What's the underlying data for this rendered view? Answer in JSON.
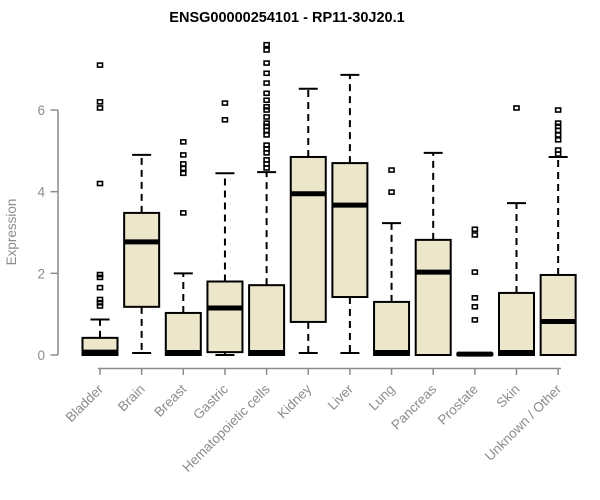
{
  "chart_data": {
    "type": "boxplot",
    "title": "ENSG00000254101 - RP11-30J20.1",
    "xlabel": "",
    "ylabel": "Expression",
    "ylim": [
      0,
      7.75
    ],
    "yticks": [
      0,
      2,
      4,
      6
    ],
    "grid": false,
    "legend": null,
    "categories": [
      "Bladder",
      "Brain",
      "Breast",
      "Gastric",
      "Hematopoietic cells",
      "Kidney",
      "Liver",
      "Lung",
      "Pancreas",
      "Prostate",
      "Skin",
      "Unknown / Other"
    ],
    "series": [
      {
        "category": "Bladder",
        "whisker_low": 0,
        "q1": 0,
        "median": 0.07,
        "q3": 0.42,
        "whisker_high": 0.87,
        "outliers": [
          1.2,
          1.28,
          1.36,
          1.65,
          1.9,
          1.97,
          4.2,
          6.05,
          6.2,
          7.1
        ]
      },
      {
        "category": "Brain",
        "whisker_low": 0.05,
        "q1": 1.18,
        "median": 2.77,
        "q3": 3.48,
        "whisker_high": 4.9,
        "outliers": []
      },
      {
        "category": "Breast",
        "whisker_low": 0,
        "q1": 0,
        "median": 0.06,
        "q3": 1.03,
        "whisker_high": 2.0,
        "outliers": [
          3.48,
          4.45,
          4.57,
          4.68,
          4.9,
          5.22
        ]
      },
      {
        "category": "Gastric",
        "whisker_low": 0,
        "q1": 0.07,
        "median": 1.15,
        "q3": 1.8,
        "whisker_high": 4.45,
        "outliers": [
          5.76,
          6.17
        ]
      },
      {
        "category": "Hematopoietic cells",
        "whisker_low": 0,
        "q1": 0,
        "median": 0.06,
        "q3": 1.71,
        "whisker_high": 4.48,
        "outliers": [
          4.58,
          4.68,
          4.78,
          4.95,
          5.05,
          5.14,
          5.39,
          5.5,
          5.6,
          5.68,
          5.83,
          6.0,
          6.08,
          6.24,
          6.41,
          6.66,
          6.9,
          7.15,
          7.47,
          7.6
        ]
      },
      {
        "category": "Kidney",
        "whisker_low": 0.05,
        "q1": 0.81,
        "median": 3.95,
        "q3": 4.85,
        "whisker_high": 6.52,
        "outliers": []
      },
      {
        "category": "Liver",
        "whisker_low": 0.05,
        "q1": 1.42,
        "median": 3.67,
        "q3": 4.7,
        "whisker_high": 6.86,
        "outliers": []
      },
      {
        "category": "Lung",
        "whisker_low": 0,
        "q1": 0,
        "median": 0.06,
        "q3": 1.3,
        "whisker_high": 3.23,
        "outliers": [
          3.99,
          4.53
        ]
      },
      {
        "category": "Pancreas",
        "whisker_low": 0,
        "q1": 0,
        "median": 2.03,
        "q3": 2.82,
        "whisker_high": 4.95,
        "outliers": []
      },
      {
        "category": "Prostate",
        "whisker_low": 0,
        "q1": 0,
        "median": 0.02,
        "q3": 0.04,
        "whisker_high": 0.04,
        "outliers": [
          0.86,
          1.18,
          1.4,
          2.03,
          2.94,
          3.08
        ]
      },
      {
        "category": "Skin",
        "whisker_low": 0,
        "q1": 0,
        "median": 0.06,
        "q3": 1.52,
        "whisker_high": 3.72,
        "outliers": [
          6.05
        ]
      },
      {
        "category": "Unknown / Other",
        "whisker_low": 0,
        "q1": 0,
        "median": 0.82,
        "q3": 1.96,
        "whisker_high": 4.85,
        "outliers": [
          4.92,
          5.02,
          5.27,
          5.39,
          5.5,
          5.6,
          5.68,
          6.0
        ]
      }
    ],
    "colors": {
      "box_fill": "#ECE6CB",
      "box_border": "#000000",
      "median": "#000000",
      "whisker": "#000000",
      "outlier": "#000000",
      "axis": "#8c8c8c",
      "tick_label": "#8c8c8c",
      "title": "#000000",
      "background": "#ffffff"
    }
  }
}
